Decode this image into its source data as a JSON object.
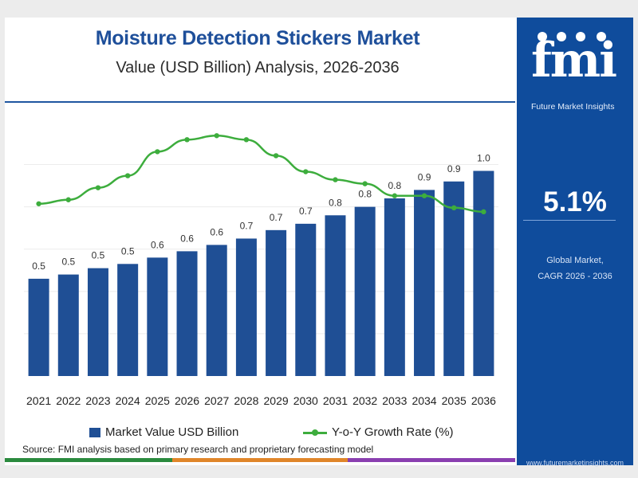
{
  "header": {
    "title": "Moisture Detection Stickers Market",
    "subtitle": "Value (USD Billion) Analysis, 2026-2036"
  },
  "sidebar": {
    "logo_text": "fmi",
    "logo_subtitle": "Future Market Insights",
    "cagr_value": "5.1%",
    "caption_line1": "Global Market,",
    "caption_line2": "CAGR 2026 - 2036",
    "url": "www.futuremarketinsights.com"
  },
  "legend": {
    "bar_label": "Market Value USD Billion",
    "line_label": "Y-o-Y Growth Rate (%)"
  },
  "source": "Source: FMI analysis based on primary research and proprietary forecasting model",
  "colors": {
    "bar": "#1f4f95",
    "line": "#3dad3d",
    "sidebar": "#0f4c9c",
    "title": "#1e4f9a"
  },
  "chart_data": {
    "type": "bar",
    "categories": [
      "2021",
      "2022",
      "2023",
      "2024",
      "2025",
      "2026",
      "2027",
      "2028",
      "2029",
      "2030",
      "2031",
      "2032",
      "2033",
      "2034",
      "2035",
      "2036"
    ],
    "series": [
      {
        "name": "Market Value USD Billion",
        "type": "bar",
        "values": [
          0.46,
          0.48,
          0.51,
          0.53,
          0.56,
          0.59,
          0.62,
          0.65,
          0.69,
          0.72,
          0.76,
          0.8,
          0.84,
          0.88,
          0.92,
          0.97
        ],
        "labels": [
          "0.5",
          "0.5",
          "0.5",
          "0.5",
          "0.6",
          "0.6",
          "0.6",
          "0.7",
          "0.7",
          "0.7",
          "0.8",
          "0.8",
          "0.8",
          "0.9",
          "0.9",
          "1.0"
        ]
      },
      {
        "name": "Y-o-Y Growth Rate (%)",
        "type": "line",
        "values": [
          4.3,
          4.4,
          4.7,
          5.0,
          5.6,
          5.9,
          6.0,
          5.9,
          5.5,
          5.1,
          4.9,
          4.8,
          4.5,
          4.5,
          4.2,
          4.1
        ]
      }
    ],
    "ylim": [
      0,
      1.1
    ],
    "line_ylim": [
      0,
      7
    ],
    "grid": true,
    "legend_position": "bottom"
  }
}
